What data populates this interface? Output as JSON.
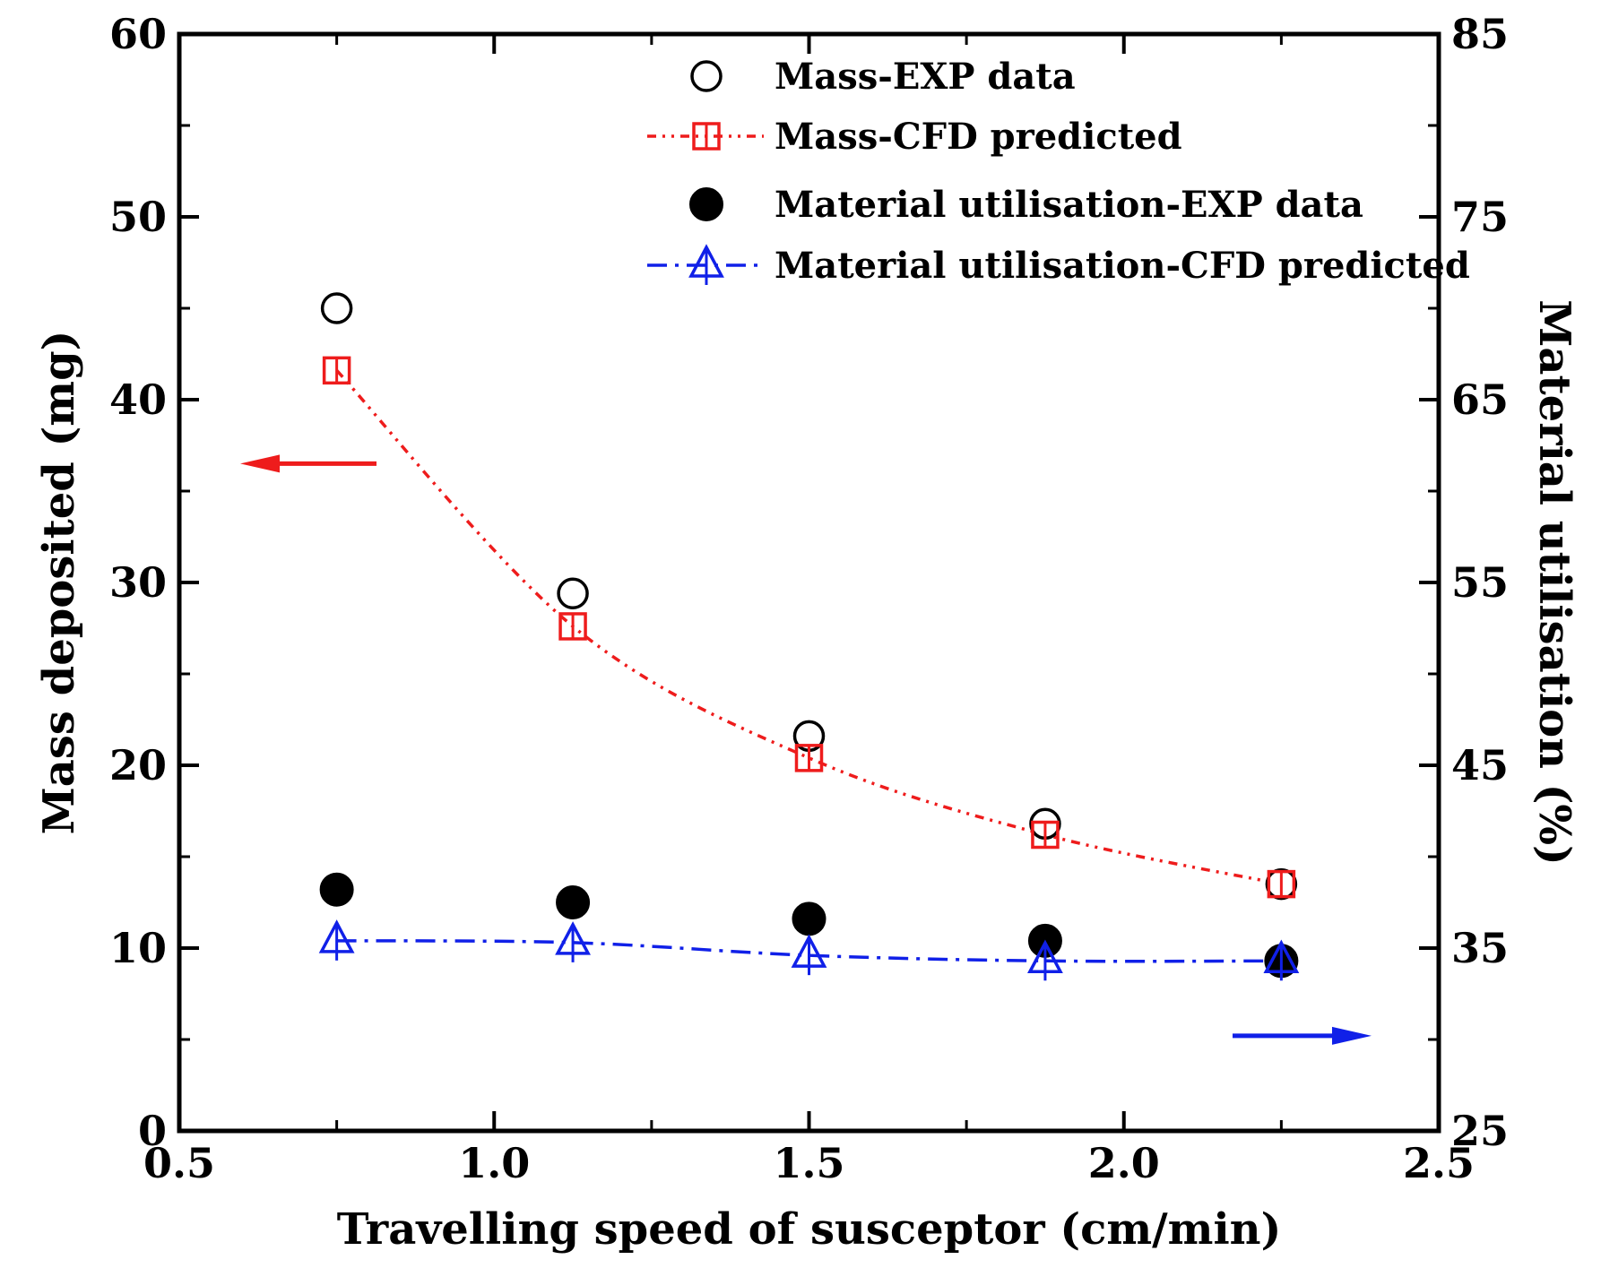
{
  "chart_data": {
    "type": "scatter",
    "xlabel": "Travelling speed of susceptor (cm/min)",
    "ylabel_left": "Mass deposited (mg)",
    "ylabel_right": "Material utilisation (%)",
    "xlim": [
      0.5,
      2.5
    ],
    "ylim_left": [
      0,
      60
    ],
    "ylim_right": [
      25,
      85
    ],
    "x_ticks": [
      0.5,
      1.0,
      1.5,
      2.0,
      2.5
    ],
    "x_tick_labels": [
      "0.5",
      "1.0",
      "1.5",
      "2.0",
      "2.5"
    ],
    "y_left_ticks": [
      0,
      10,
      20,
      30,
      40,
      50,
      60
    ],
    "y_left_tick_labels": [
      "0",
      "10",
      "20",
      "30",
      "40",
      "50",
      "60"
    ],
    "y_right_ticks": [
      25,
      35,
      45,
      55,
      65,
      75,
      85
    ],
    "y_right_tick_labels": [
      "25",
      "35",
      "45",
      "55",
      "65",
      "75",
      "85"
    ],
    "grid": false,
    "legend_position": "top-right",
    "series": [
      {
        "name": "Mass-EXP data",
        "axis": "left",
        "marker": "open-circle",
        "color": "#000000",
        "line": "none",
        "x": [
          0.75,
          1.125,
          1.5,
          1.875,
          2.25
        ],
        "values": [
          45.0,
          29.4,
          21.6,
          16.8,
          13.5
        ]
      },
      {
        "name": "Mass-CFD predicted",
        "axis": "left",
        "marker": "open-square",
        "color": "#ee1c1c",
        "line": "dash-dot-dot",
        "x": [
          0.75,
          1.125,
          1.5,
          1.875,
          2.25
        ],
        "values": [
          41.6,
          27.6,
          20.4,
          16.2,
          13.5
        ]
      },
      {
        "name": "Material utilisation-EXP data",
        "axis": "right",
        "marker": "filled-circle",
        "color": "#000000",
        "line": "none",
        "x": [
          0.75,
          1.125,
          1.5,
          1.875,
          2.25
        ],
        "values": [
          38.2,
          37.5,
          36.6,
          35.4,
          34.3
        ]
      },
      {
        "name": "Material utilisation-CFD predicted",
        "axis": "right",
        "marker": "open-triangle",
        "color": "#1020e8",
        "line": "dash-dot",
        "x": [
          0.75,
          1.125,
          1.5,
          1.875,
          2.25
        ],
        "values": [
          35.4,
          35.3,
          34.6,
          34.3,
          34.3
        ]
      }
    ],
    "annotations": [
      {
        "type": "arrow",
        "direction": "left",
        "color": "#ee1c1c",
        "meaning": "red series read on left axis"
      },
      {
        "type": "arrow",
        "direction": "right",
        "color": "#1020e8",
        "meaning": "blue series read on right axis"
      }
    ]
  }
}
